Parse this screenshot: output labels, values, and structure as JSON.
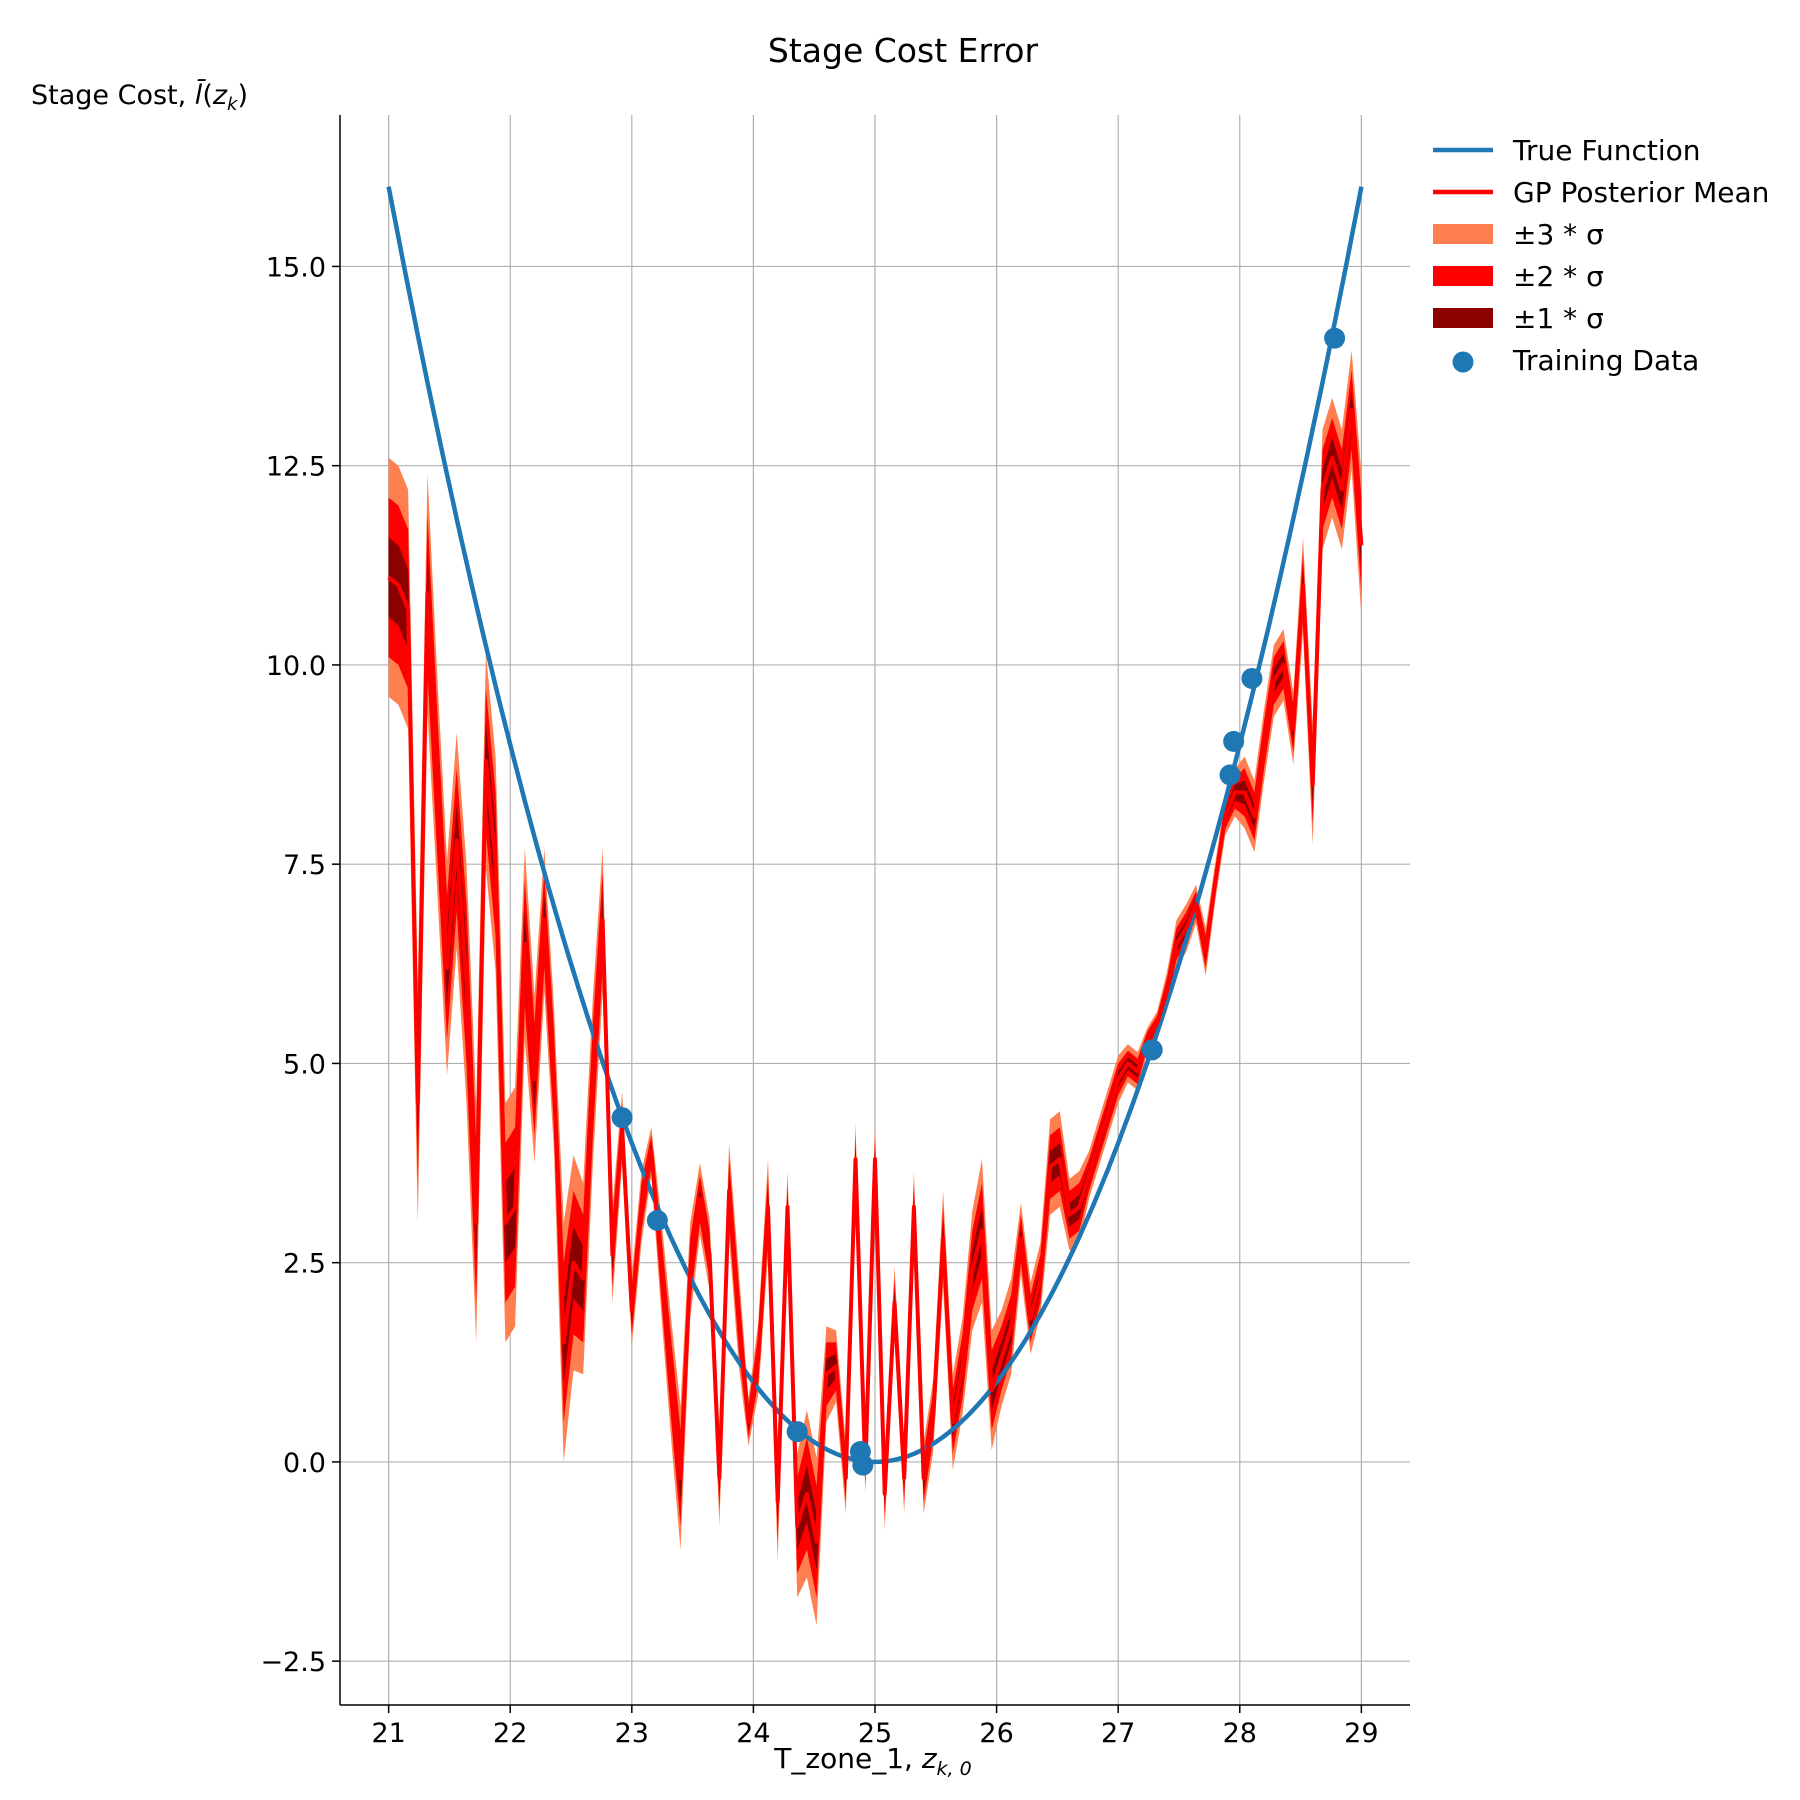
{
  "chart_data": {
    "type": "line",
    "title": "Stage Cost Error",
    "ylabel": "Stage Cost, l̄(z_k)",
    "xlabel": "T_zone_1, z_{k,0}",
    "xlim": [
      20.6,
      29.4
    ],
    "ylim": [
      -3.05,
      16.9
    ],
    "xticks": [
      21,
      22,
      23,
      24,
      25,
      26,
      27,
      28,
      29
    ],
    "yticks": [
      -2.5,
      0.0,
      2.5,
      5.0,
      7.5,
      10.0,
      12.5,
      15.0
    ],
    "ytick_labels": [
      "−2.5",
      "0.0",
      "2.5",
      "5.0",
      "7.5",
      "10.0",
      "12.5",
      "15.0"
    ],
    "grid": true,
    "legend_position": "outside-top-right",
    "legend": [
      {
        "label": "True Function",
        "kind": "line",
        "color": "#1f77b4"
      },
      {
        "label": "GP Posterior Mean",
        "kind": "line",
        "color": "#ff0000"
      },
      {
        "label": "±3 * σ",
        "kind": "patch",
        "color": "#ff7f50"
      },
      {
        "label": "±2 * σ",
        "kind": "patch",
        "color": "#ff0000"
      },
      {
        "label": "±1 * σ",
        "kind": "patch",
        "color": "#8b0000"
      },
      {
        "label": "Training Data",
        "kind": "marker",
        "color": "#1f77b4"
      }
    ],
    "true_function": {
      "name": "True Function",
      "form": "(x - 25)^2",
      "x_range": [
        21,
        29
      ],
      "color": "#1f77b4"
    },
    "gp_mean": {
      "name": "GP Posterior Mean",
      "color": "#ff0000",
      "x": [
        21.0,
        21.08,
        21.16,
        21.24,
        21.32,
        21.4,
        21.48,
        21.56,
        21.64,
        21.72,
        21.8,
        21.88,
        21.96,
        22.04,
        22.12,
        22.2,
        22.28,
        22.36,
        22.44,
        22.52,
        22.6,
        22.68,
        22.76,
        22.84,
        22.92,
        23.0,
        23.08,
        23.16,
        23.24,
        23.32,
        23.4,
        23.48,
        23.56,
        23.64,
        23.72,
        23.8,
        23.88,
        23.96,
        24.04,
        24.12,
        24.2,
        24.28,
        24.36,
        24.44,
        24.52,
        24.6,
        24.68,
        24.76,
        24.84,
        24.92,
        25.0,
        25.08,
        25.16,
        25.24,
        25.32,
        25.4,
        25.48,
        25.56,
        25.64,
        25.72,
        25.8,
        25.88,
        25.96,
        26.04,
        26.12,
        26.2,
        26.28,
        26.36,
        26.44,
        26.52,
        26.6,
        26.68,
        26.76,
        26.84,
        26.92,
        27.0,
        27.08,
        27.16,
        27.24,
        27.32,
        27.4,
        27.48,
        27.56,
        27.64,
        27.72,
        27.8,
        27.88,
        27.96,
        28.04,
        28.12,
        28.2,
        28.28,
        28.36,
        28.44,
        28.52,
        28.6,
        28.68,
        28.76,
        28.84,
        28.92,
        29.0
      ],
      "y": [
        11.1,
        11.0,
        10.7,
        4.5,
        10.9,
        8.5,
        6.2,
        7.8,
        6.0,
        3.0,
        8.8,
        7.5,
        3.0,
        3.2,
        6.5,
        4.8,
        6.8,
        4.8,
        1.5,
        2.5,
        2.3,
        4.8,
        6.8,
        2.6,
        4.2,
        1.9,
        3.2,
        3.9,
        2.5,
        1.1,
        -0.2,
        2.4,
        3.3,
        2.6,
        -0.2,
        3.4,
        1.8,
        0.5,
        1.3,
        3.2,
        -0.5,
        3.2,
        -0.8,
        -0.4,
        -1.0,
        1.1,
        1.2,
        -0.2,
        3.8,
        -0.1,
        3.8,
        -0.4,
        2.0,
        -0.2,
        3.2,
        -0.2,
        0.6,
        2.8,
        0.5,
        1.2,
        2.4,
        2.9,
        0.9,
        1.3,
        1.7,
        2.8,
        1.8,
        2.3,
        3.7,
        3.8,
        3.1,
        3.2,
        3.6,
        4.0,
        4.4,
        4.8,
        5.0,
        4.9,
        5.3,
        5.5,
        5.9,
        6.5,
        6.7,
        7.0,
        6.4,
        7.3,
        8.1,
        8.4,
        8.4,
        8.1,
        9.0,
        9.8,
        10.0,
        9.2,
        11.0,
        8.5,
        12.2,
        12.6,
        12.2,
        13.2,
        11.5
      ],
      "sigma": [
        0.5,
        0.5,
        0.5,
        0.5,
        0.5,
        0.45,
        0.45,
        0.45,
        0.5,
        0.5,
        0.45,
        0.45,
        0.5,
        0.5,
        0.4,
        0.35,
        0.3,
        0.3,
        0.5,
        0.45,
        0.4,
        0.35,
        0.3,
        0.2,
        0.15,
        0.15,
        0.15,
        0.1,
        0.2,
        0.25,
        0.3,
        0.2,
        0.15,
        0.15,
        0.2,
        0.2,
        0.2,
        0.1,
        0.15,
        0.2,
        0.25,
        0.15,
        0.3,
        0.35,
        0.35,
        0.2,
        0.15,
        0.15,
        0.15,
        0.1,
        0.15,
        0.15,
        0.15,
        0.15,
        0.15,
        0.15,
        0.15,
        0.2,
        0.2,
        0.2,
        0.25,
        0.3,
        0.25,
        0.2,
        0.2,
        0.15,
        0.15,
        0.15,
        0.2,
        0.2,
        0.15,
        0.15,
        0.1,
        0.1,
        0.1,
        0.1,
        0.08,
        0.08,
        0.05,
        0.05,
        0.08,
        0.1,
        0.1,
        0.08,
        0.1,
        0.08,
        0.08,
        0.1,
        0.15,
        0.15,
        0.15,
        0.15,
        0.15,
        0.15,
        0.2,
        0.25,
        0.25,
        0.25,
        0.25,
        0.25,
        0.3
      ]
    },
    "training_data": {
      "name": "Training Data",
      "color": "#1f77b4",
      "x": [
        22.92,
        23.21,
        24.36,
        24.88,
        24.9,
        27.28,
        27.92,
        27.95,
        28.1,
        28.78
      ],
      "y": [
        4.32,
        3.03,
        0.38,
        0.13,
        -0.04,
        5.17,
        8.62,
        9.04,
        9.83,
        14.1
      ]
    }
  }
}
